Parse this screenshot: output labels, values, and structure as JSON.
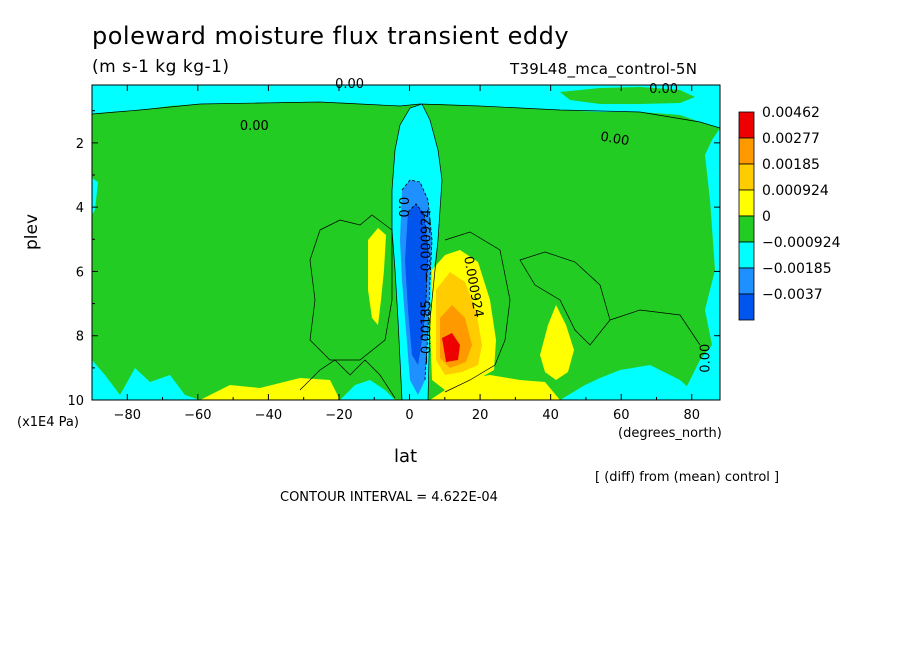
{
  "chart_data": {
    "type": "heatmap",
    "subtype": "filled-contour",
    "title": "poleward moisture flux transient eddy",
    "subtitle": "(m s-1 kg kg-1)",
    "run_label": "T39L48_mca_control-5N",
    "xlabel": "lat",
    "x_units": "(degrees_north)",
    "ylabel": "plev",
    "y_units": "(x1E4 Pa)",
    "xlim": [
      -90,
      88
    ],
    "ylim": [
      10,
      0.2
    ],
    "y_inverted": true,
    "x_ticks": [
      -80,
      -60,
      -40,
      -20,
      0,
      20,
      40,
      60,
      80
    ],
    "y_ticks": [
      2,
      4,
      6,
      8,
      10
    ],
    "legend": {
      "position": "right",
      "levels": [
        "0.00462",
        "0.00277",
        "0.00185",
        "0.000924",
        "0",
        "−0.000924",
        "−0.00185",
        "−0.0037"
      ],
      "colors": [
        "#ee0000",
        "#ff9900",
        "#ffcc00",
        "#ffff00",
        "#22cc22",
        "#00ffff",
        "#1e90ff",
        "#0055ee"
      ]
    },
    "contour_labels": [
      "0.00",
      "0.00",
      "0.00",
      "0.00",
      "0.00",
      "0.0",
      "−0.000924",
      "−0.00185",
      "0.000924",
      "0.00"
    ],
    "regions": [
      {
        "name": "upper-cyan-band",
        "level": "0"
      },
      {
        "name": "equatorial-negative-core",
        "level": "−0.0037",
        "center": [
          3,
          6.5
        ]
      },
      {
        "name": "northern-positive-core",
        "level": "0.00462",
        "center": [
          13,
          8.3
        ]
      },
      {
        "name": "southern-yellow-patch",
        "level": "0.000924",
        "center": [
          -8,
          6
        ]
      },
      {
        "name": "subtropical-yellow-patch",
        "level": "0.000924",
        "center": [
          42,
          8.5
        ]
      }
    ],
    "grid": false
  },
  "footer": {
    "note": "[ (diff) from (mean) control ]",
    "contour_interval": "CONTOUR INTERVAL = 4.622E-04"
  },
  "colors": {
    "green": "#22cc22",
    "cyan": "#00ffff",
    "yellow": "#ffff00",
    "orange": "#ff9900",
    "gold": "#ffcc00",
    "red": "#ee0000",
    "blue": "#1e90ff",
    "darkblue": "#0055ee"
  }
}
